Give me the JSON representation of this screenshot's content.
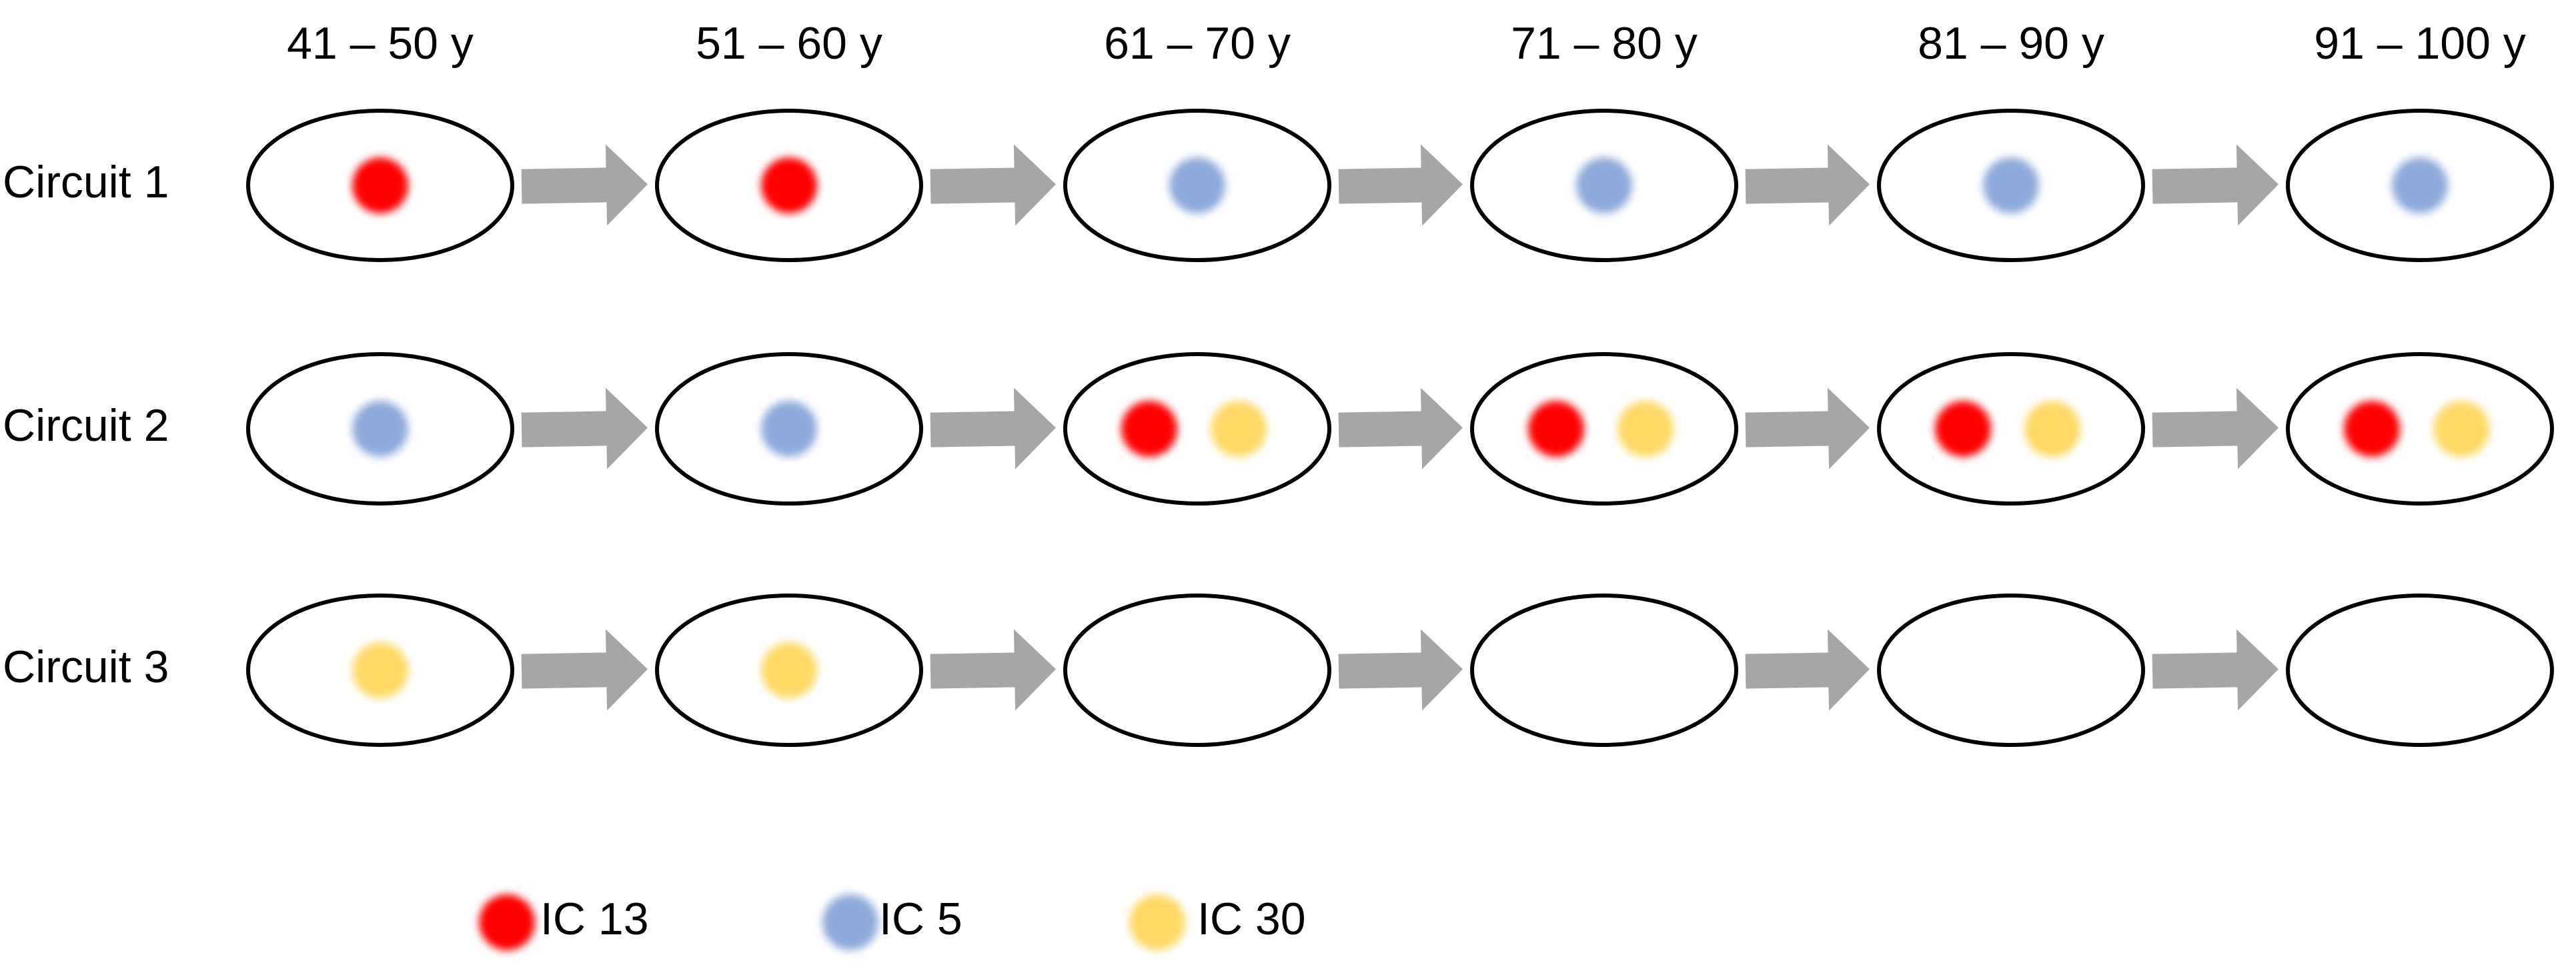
{
  "colors": {
    "IC 13": "#ff0000",
    "IC 5": "#8eaadb",
    "IC 30": "#ffd966",
    "arrow": "#a6a6a6"
  },
  "age_groups": [
    "41 – 50 y",
    "51 – 60 y",
    "61 – 70 y",
    "71 – 80 y",
    "81 – 90 y",
    "91 – 100 y"
  ],
  "circuits": [
    {
      "label": "Circuit 1",
      "stages": [
        [
          "IC 13"
        ],
        [
          "IC 13"
        ],
        [
          "IC 5"
        ],
        [
          "IC 5"
        ],
        [
          "IC 5"
        ],
        [
          "IC 5"
        ]
      ]
    },
    {
      "label": "Circuit 2",
      "stages": [
        [
          "IC 5"
        ],
        [
          "IC 5"
        ],
        [
          "IC 13",
          "IC 30"
        ],
        [
          "IC 13",
          "IC 30"
        ],
        [
          "IC 13",
          "IC 30"
        ],
        [
          "IC 13",
          "IC 30"
        ]
      ]
    },
    {
      "label": "Circuit 3",
      "stages": [
        [
          "IC 30"
        ],
        [
          "IC 30"
        ],
        [],
        [],
        [],
        []
      ]
    }
  ],
  "legend": [
    {
      "label": "IC 13",
      "icon": "red-dot-icon"
    },
    {
      "label": "IC 5",
      "icon": "blue-dot-icon"
    },
    {
      "label": "IC 30",
      "icon": "yellow-dot-icon"
    }
  ]
}
